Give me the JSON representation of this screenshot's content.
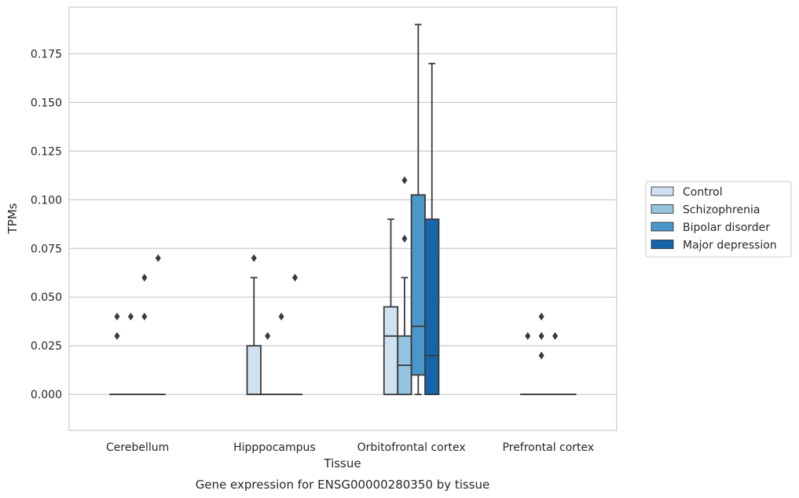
{
  "chart_data": {
    "type": "box",
    "title": "Gene expression for ENSG00000280350 by tissue",
    "xlabel": "Tissue",
    "ylabel": "TPMs",
    "ylim": [
      -0.0185,
      0.199
    ],
    "yticks": [
      "0.000",
      "0.025",
      "0.050",
      "0.075",
      "0.100",
      "0.125",
      "0.150",
      "0.175"
    ],
    "grid": "horizontal",
    "legend_position": "right",
    "categories": [
      "Cerebellum",
      "Hipppocampus",
      "Orbitofrontal cortex",
      "Prefrontal cortex"
    ],
    "series": [
      {
        "name": "Control",
        "color": "#d0e1f2",
        "boxes": [
          {
            "q1": 0,
            "median": 0,
            "q3": 0,
            "whislo": 0,
            "whishi": 0,
            "fliers": [
              0.03,
              0.04
            ]
          },
          {
            "q1": 0,
            "median": 0,
            "q3": 0.025,
            "whislo": 0,
            "whishi": 0.06,
            "fliers": [
              0.07
            ]
          },
          {
            "q1": 0,
            "median": 0.03,
            "q3": 0.045,
            "whislo": 0,
            "whishi": 0.09,
            "fliers": []
          },
          {
            "q1": 0,
            "median": 0,
            "q3": 0,
            "whislo": 0,
            "whishi": 0,
            "fliers": [
              0.03
            ]
          }
        ]
      },
      {
        "name": "Schizophrenia",
        "color": "#94c4df",
        "boxes": [
          {
            "q1": 0,
            "median": 0,
            "q3": 0,
            "whislo": 0,
            "whishi": 0,
            "fliers": [
              0.04
            ]
          },
          {
            "q1": 0,
            "median": 0,
            "q3": 0,
            "whislo": 0,
            "whishi": 0,
            "fliers": [
              0.03
            ]
          },
          {
            "q1": 0,
            "median": 0.015,
            "q3": 0.03,
            "whislo": 0,
            "whishi": 0.06,
            "fliers": [
              0.08,
              0.11
            ]
          },
          {
            "q1": 0,
            "median": 0,
            "q3": 0,
            "whislo": 0,
            "whishi": 0,
            "fliers": [
              0.02,
              0.03,
              0.04
            ]
          }
        ]
      },
      {
        "name": "Bipolar disorder",
        "color": "#4a98c9",
        "boxes": [
          {
            "q1": 0,
            "median": 0,
            "q3": 0,
            "whislo": 0,
            "whishi": 0,
            "fliers": [
              0.04,
              0.06
            ]
          },
          {
            "q1": 0,
            "median": 0,
            "q3": 0,
            "whislo": 0,
            "whishi": 0,
            "fliers": [
              0.04
            ]
          },
          {
            "q1": 0.01,
            "median": 0.035,
            "q3": 0.1025,
            "whislo": 0,
            "whishi": 0.19,
            "fliers": []
          },
          {
            "q1": 0,
            "median": 0,
            "q3": 0,
            "whislo": 0,
            "whishi": 0,
            "fliers": [
              0.03
            ]
          }
        ]
      },
      {
        "name": "Major depression",
        "color": "#1764ab",
        "boxes": [
          {
            "q1": 0,
            "median": 0,
            "q3": 0,
            "whislo": 0,
            "whishi": 0,
            "fliers": [
              0.07
            ]
          },
          {
            "q1": 0,
            "median": 0,
            "q3": 0,
            "whislo": 0,
            "whishi": 0,
            "fliers": [
              0.06
            ]
          },
          {
            "q1": 0,
            "median": 0.02,
            "q3": 0.09,
            "whislo": 0,
            "whishi": 0.17,
            "fliers": []
          },
          {
            "q1": 0,
            "median": 0,
            "q3": 0,
            "whislo": 0,
            "whishi": 0,
            "fliers": []
          }
        ]
      }
    ]
  }
}
